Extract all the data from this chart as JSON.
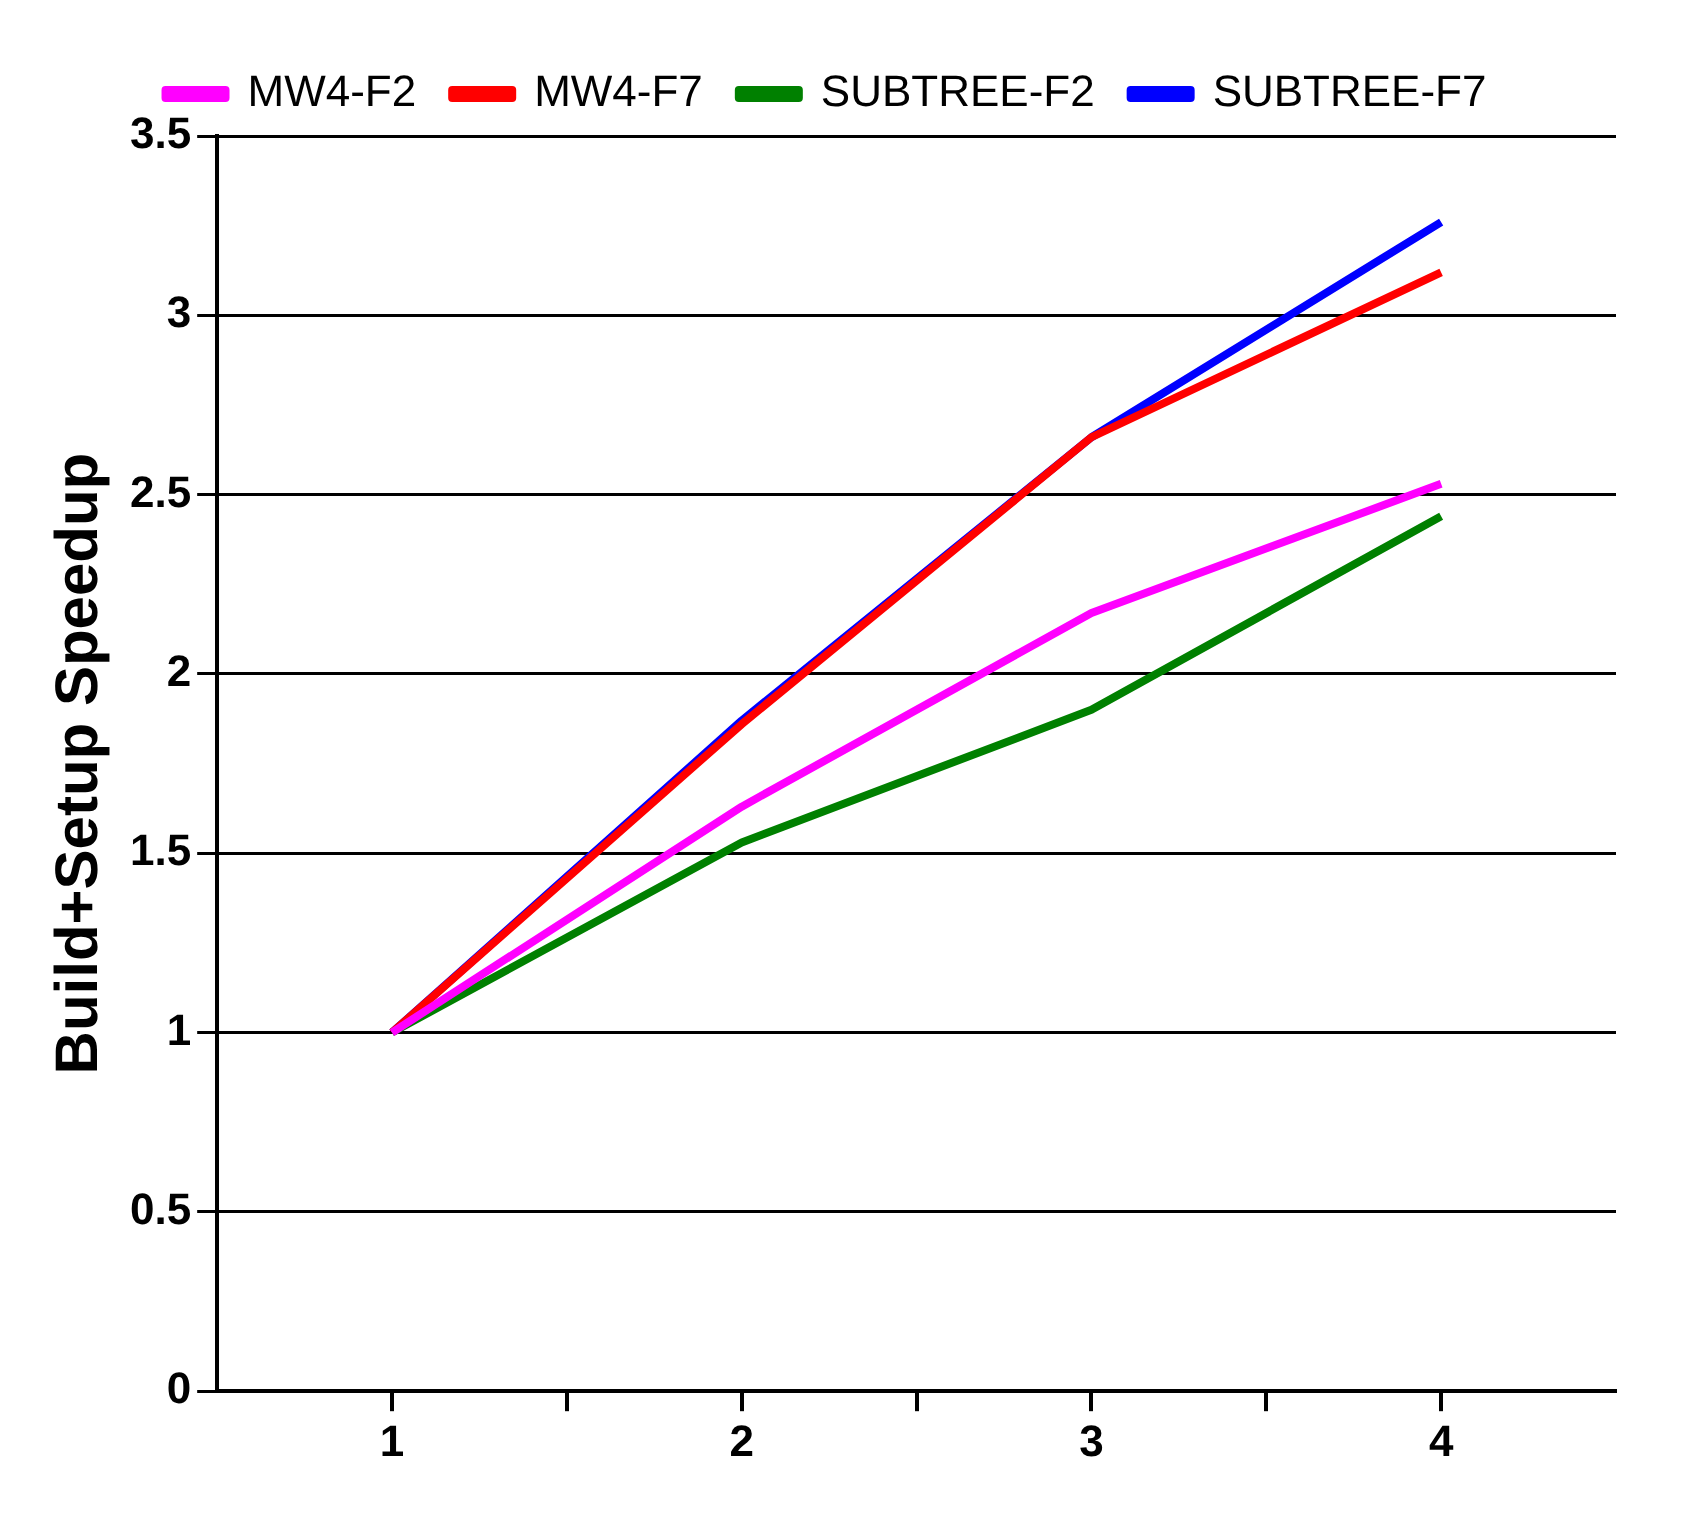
{
  "chart_data": {
    "type": "line",
    "ylabel": "Build+Setup Speedup",
    "x": [
      1,
      2,
      3,
      4
    ],
    "series": [
      {
        "name": "MW4-F2",
        "color": "#ff00ff",
        "values": [
          1,
          1.63,
          2.17,
          2.53
        ]
      },
      {
        "name": "MW4-F7",
        "color": "#ff0000",
        "values": [
          1,
          1.86,
          2.66,
          3.12
        ]
      },
      {
        "name": "SUBTREE-F2",
        "color": "#008000",
        "values": [
          1,
          1.53,
          1.9,
          2.44
        ]
      },
      {
        "name": "SUBTREE-F7",
        "color": "#0000ff",
        "values": [
          1,
          1.87,
          2.66,
          3.26
        ]
      }
    ],
    "xlim": [
      0.5,
      4.5
    ],
    "xticks": [
      1,
      {
        "value": 1.5,
        "label": null
      },
      2,
      {
        "value": 2.5,
        "label": null
      },
      3,
      {
        "value": 3.5,
        "label": null
      },
      4
    ],
    "ylim": [
      0,
      3.5
    ],
    "yticks": [
      0,
      0.5,
      1,
      1.5,
      2,
      2.5,
      3,
      3.5
    ],
    "grid": "y",
    "legend": "top",
    "marker": "none",
    "line_style": "solid"
  }
}
